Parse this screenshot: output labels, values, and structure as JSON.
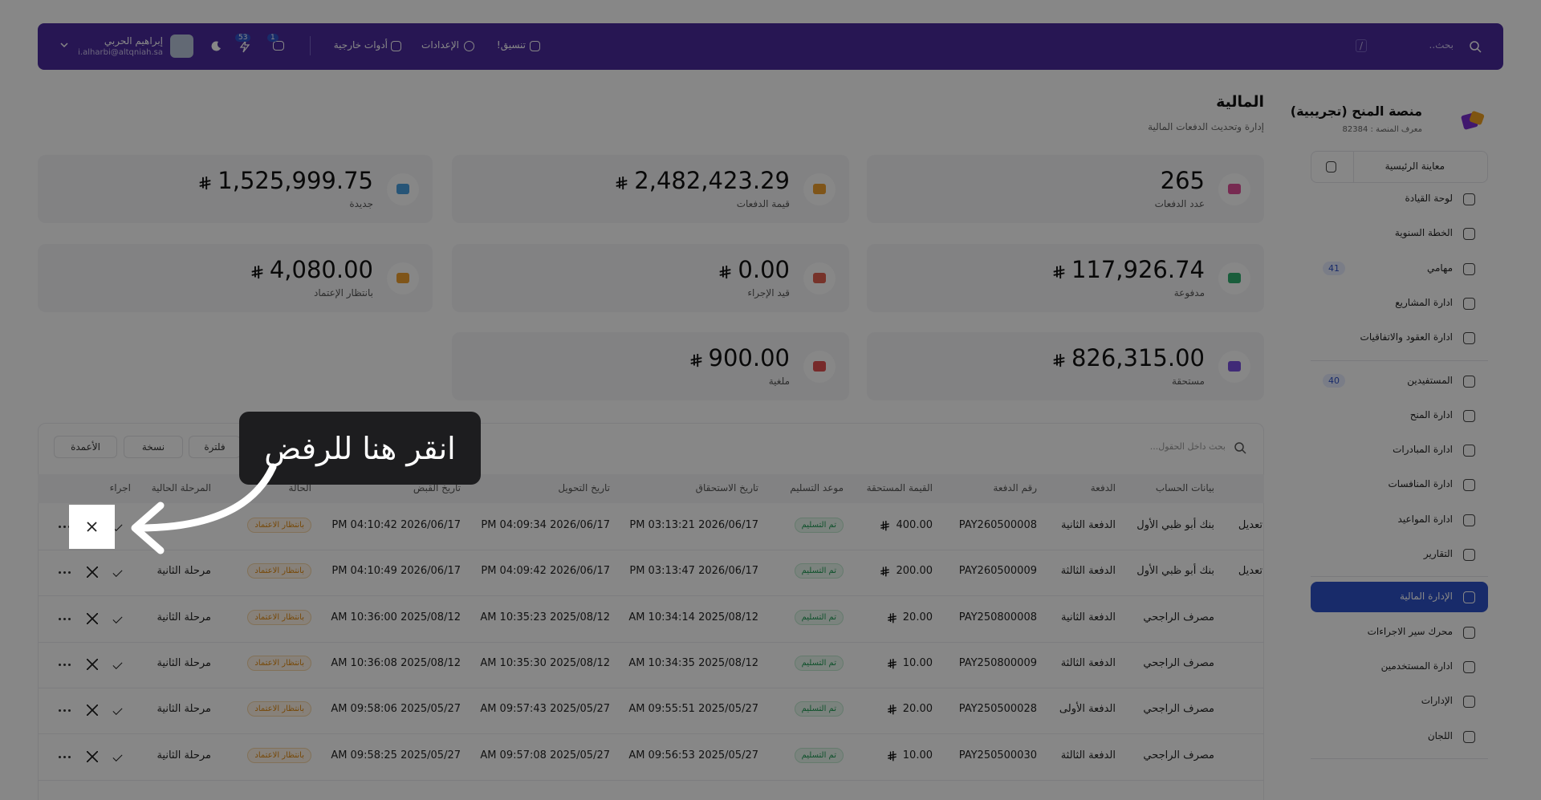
{
  "topbar": {
    "search": "بحث..",
    "shortcut": "/",
    "links": [
      "تنسيق!",
      "الإعدادات",
      "أدوات خارجية"
    ],
    "badges": [
      "1",
      "53"
    ],
    "user_name": "إبراهيم الحربي",
    "user_email": "i.alharbi@altqniah.sa"
  },
  "sidebar": {
    "title": "منصة المنح (تجريبية)",
    "platform_id": "معرف المنصة : 82384",
    "preview": "معاينة الرئيسية",
    "groups": [
      [
        {
          "label": "لوحة القيادة"
        },
        {
          "label": "الخطة السنوية"
        },
        {
          "label": "مهامي",
          "badge": "41"
        },
        {
          "label": "ادارة المشاريع"
        },
        {
          "label": "ادارة العقود والاتفاقيات"
        }
      ],
      [
        {
          "label": "المستفيدين",
          "badge": "40"
        },
        {
          "label": "ادارة المنح"
        },
        {
          "label": "ادارة المبادرات"
        },
        {
          "label": "ادارة المنافسات"
        },
        {
          "label": "ادارة المواعيد"
        },
        {
          "label": "التقارير"
        }
      ],
      [
        {
          "label": "الإدارة المالية",
          "active": true
        },
        {
          "label": "محرك سير الاجراءات"
        },
        {
          "label": "ادارة المستخدمين"
        },
        {
          "label": "الإدارات"
        },
        {
          "label": "اللجان"
        }
      ]
    ]
  },
  "header": {
    "title": "المالية",
    "subtitle": "إدارة وتحديث الدفعات المالية"
  },
  "stats": [
    {
      "value": "265",
      "label": "عدد الدفعات"
    },
    {
      "value": "2,482,423.29",
      "label": "قيمة الدفعات",
      "currency": true
    },
    {
      "value": "1,525,999.75",
      "label": "جديدة",
      "currency": true
    },
    {
      "value": "117,926.74",
      "label": "مدفوعة",
      "currency": true
    },
    {
      "value": "0.00",
      "label": "قيد الإجراء",
      "currency": true
    },
    {
      "value": "4,080.00",
      "label": "بانتظار الإعتماد",
      "currency": true
    },
    {
      "value": "826,315.00",
      "label": "مستحقة",
      "currency": true
    },
    {
      "value": "900.00",
      "label": "ملغية",
      "currency": true
    }
  ],
  "table": {
    "search": "بحث داخل الحقول...",
    "buttons": [
      "الأعمدة",
      "نسخة",
      "فلترة"
    ],
    "columns": [
      "بيانات الحساب",
      "الدفعة",
      "رقم الدفعة",
      "القيمة المستحقة",
      "موعد التسليم",
      "تاريخ الاستحقاق",
      "تاريخ التحويل",
      "تاريخ القبض",
      "الحالة",
      "المرحلة الحالية",
      "اجراء"
    ],
    "rows": [
      {
        "edit": "تعديل",
        "account": "بنك أبو ظبي الأول",
        "payment": "الدفعة الثانية",
        "number": "PAY260500008",
        "amount": "400.00",
        "delivery": "تم التسليم",
        "due": "PM 03:13:21 2026/06/17",
        "transfer": "PM 04:09:34 2026/06/17",
        "received": "PM 04:10:42 2026/06/17",
        "status": "بانتظار الاعتماد"
      },
      {
        "edit": "تعديل",
        "account": "بنك أبو ظبي الأول",
        "payment": "الدفعة الثالثة",
        "number": "PAY260500009",
        "amount": "200.00",
        "delivery": "تم التسليم",
        "due": "PM 03:13:47 2026/06/17",
        "transfer": "PM 04:09:42 2026/06/17",
        "received": "PM 04:10:49 2026/06/17",
        "status": "بانتظار الاعتماد",
        "stage": "مرحلة الثانية"
      },
      {
        "account": "مصرف الراجحي",
        "payment": "الدفعة الثانية",
        "number": "PAY250800008",
        "amount": "20.00",
        "delivery": "تم التسليم",
        "due": "AM 10:34:14 2025/08/12",
        "transfer": "AM 10:35:23 2025/08/12",
        "received": "AM 10:36:00 2025/08/12",
        "status": "بانتظار الاعتماد",
        "stage": "مرحلة الثانية"
      },
      {
        "account": "مصرف الراجحي",
        "payment": "الدفعة الثالثة",
        "number": "PAY250800009",
        "amount": "10.00",
        "delivery": "تم التسليم",
        "due": "AM 10:34:35 2025/08/12",
        "transfer": "AM 10:35:30 2025/08/12",
        "received": "AM 10:36:08 2025/08/12",
        "status": "بانتظار الاعتماد",
        "stage": "مرحلة الثانية"
      },
      {
        "account": "مصرف الراجحي",
        "payment": "الدفعة الأولى",
        "number": "PAY250500028",
        "amount": "20.00",
        "delivery": "تم التسليم",
        "due": "AM 09:55:51 2025/05/27",
        "transfer": "AM 09:57:43 2025/05/27",
        "received": "AM 09:58:06 2025/05/27",
        "status": "بانتظار الاعتماد",
        "stage": "مرحلة الثانية"
      },
      {
        "account": "مصرف الراجحي",
        "payment": "الدفعة الثالثة",
        "number": "PAY250500030",
        "amount": "10.00",
        "delivery": "تم التسليم",
        "due": "AM 09:56:53 2025/05/27",
        "transfer": "AM 09:57:08 2025/05/27",
        "received": "AM 09:58:25 2025/05/27",
        "status": "بانتظار الاعتماد",
        "stage": "مرحلة الثانية"
      }
    ]
  },
  "tooltip": "انقر هنا للرفض"
}
